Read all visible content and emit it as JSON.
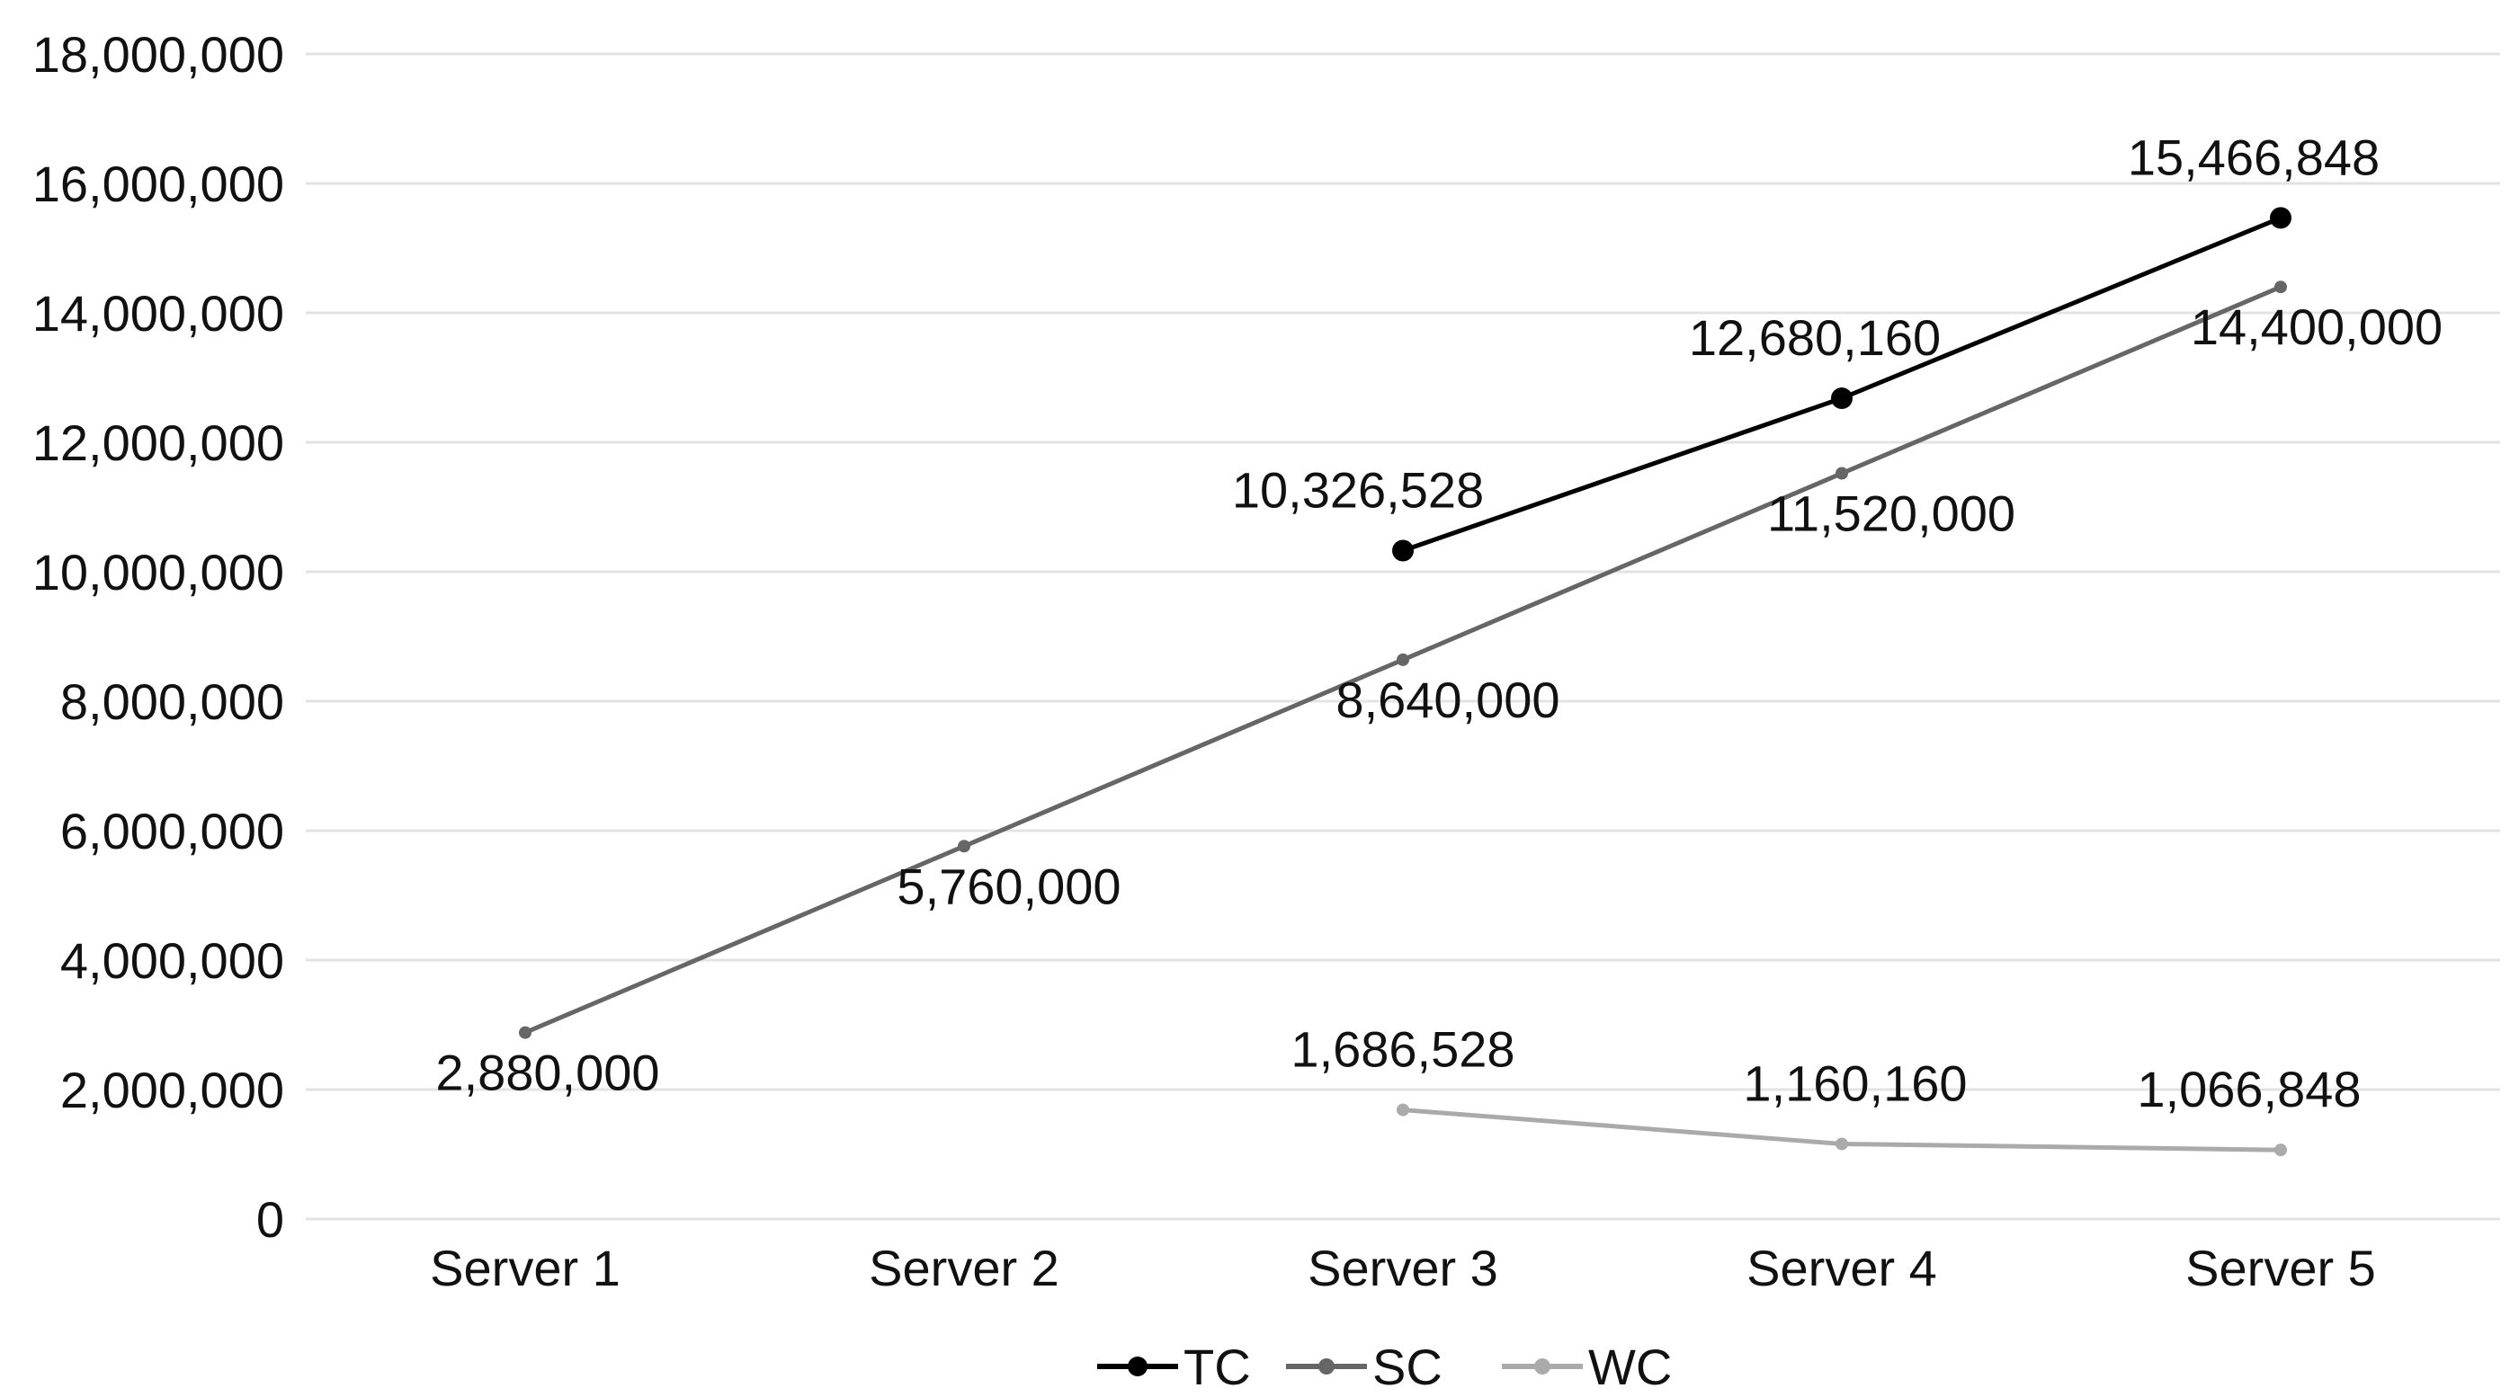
{
  "chart_data": {
    "type": "line",
    "title": "",
    "xlabel": "",
    "ylabel": "",
    "categories": [
      "Server 1",
      "Server 2",
      "Server 3",
      "Server 4",
      "Server 5"
    ],
    "ylim": [
      0,
      18000000
    ],
    "yticks": [
      0,
      2000000,
      4000000,
      6000000,
      8000000,
      10000000,
      12000000,
      14000000,
      16000000,
      18000000
    ],
    "ytick_labels": [
      "0",
      "2,000,000",
      "4,000,000",
      "6,000,000",
      "8,000,000",
      "10,000,000",
      "12,000,000",
      "14,000,000",
      "16,000,000",
      "18,000,000"
    ],
    "grid": true,
    "legend_position": "bottom",
    "series": [
      {
        "name": "TC",
        "color": "#000000",
        "values": [
          null,
          null,
          10326528,
          12680160,
          15466848
        ],
        "labels": [
          "",
          "",
          "10,326,528",
          "12,680,160",
          "15,466,848"
        ],
        "label_position": "above"
      },
      {
        "name": "SC",
        "color": "#666666",
        "values": [
          2880000,
          5760000,
          8640000,
          11520000,
          14400000
        ],
        "labels": [
          "2,880,000",
          "5,760,000",
          "8,640,000",
          "11,520,000",
          "14,400,000"
        ],
        "label_position": "below"
      },
      {
        "name": "WC",
        "color": "#aaaaaa",
        "values": [
          null,
          null,
          1686528,
          1160160,
          1066848
        ],
        "labels": [
          "",
          "",
          "1,686,528",
          "1,160,160",
          "1,066,848"
        ],
        "label_position": "above"
      }
    ]
  }
}
